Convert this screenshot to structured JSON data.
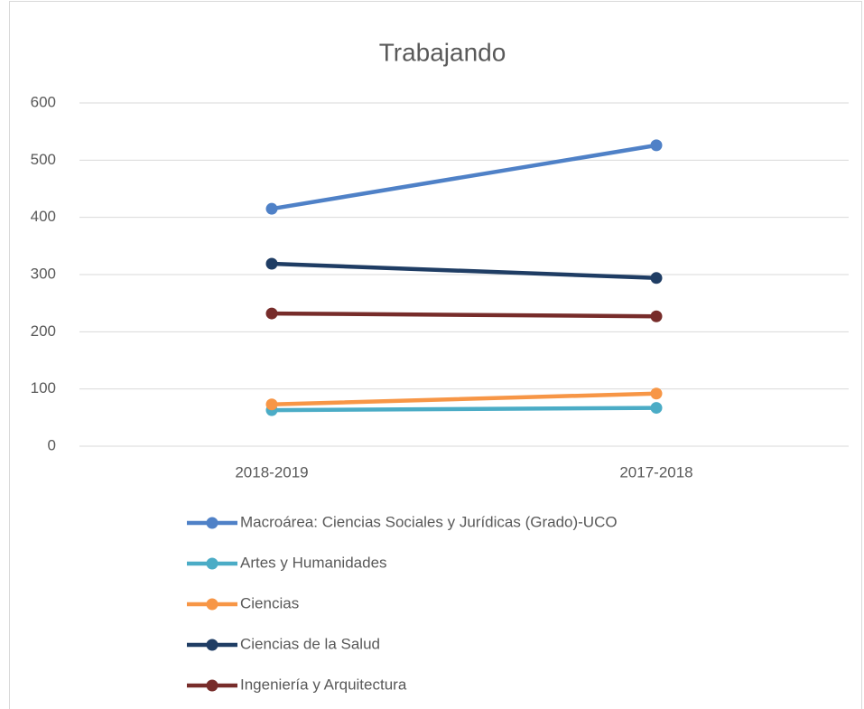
{
  "chart_data": {
    "type": "line",
    "title": "Trabajando",
    "categories": [
      "2018-2019",
      "2017-2018"
    ],
    "series": [
      {
        "name": "Macroárea: Ciencias Sociales y Jurídicas (Grado)-UCO",
        "color": "#4f81c7",
        "values": [
          415,
          526
        ]
      },
      {
        "name": "Artes y Humanidades",
        "color": "#4bacc6",
        "values": [
          63,
          67
        ]
      },
      {
        "name": "Ciencias",
        "color": "#f79646",
        "values": [
          73,
          92
        ]
      },
      {
        "name": "Ciencias de la Salud",
        "color": "#1f3d64",
        "values": [
          319,
          294
        ]
      },
      {
        "name": "Ingeniería y Arquitectura",
        "color": "#772c2a",
        "values": [
          232,
          227
        ]
      }
    ],
    "ylim": [
      0,
      600
    ],
    "yticks": [
      0,
      100,
      200,
      300,
      400,
      500,
      600
    ],
    "grid": true,
    "legend": "bottom"
  }
}
